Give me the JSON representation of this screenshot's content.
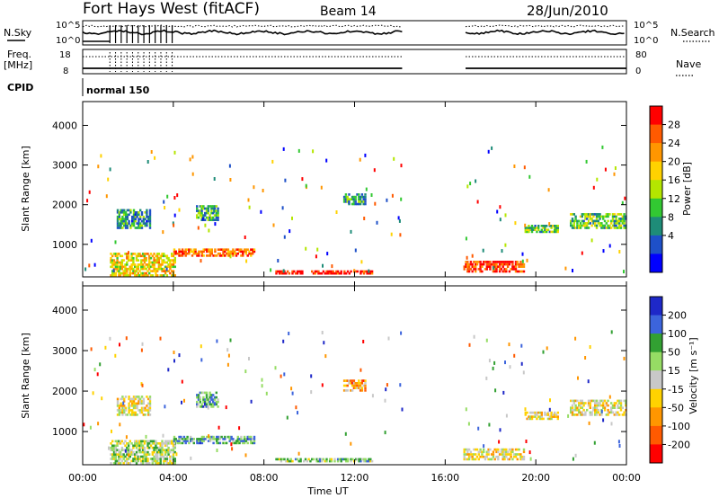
{
  "header": {
    "station": "Fort Hays West (fitACF)",
    "beam": "Beam 14",
    "date": "28/Jun/2010"
  },
  "panels": {
    "nsky": {
      "label": "N.Sky",
      "ticks": [
        "10^5",
        "10^0"
      ],
      "right_ticks": [
        "10^5",
        "10^0"
      ],
      "right_label": "N.Search"
    },
    "freq": {
      "label_line1": "Freq.",
      "label_line2": "[MHz]",
      "ticks": [
        "18",
        "8"
      ],
      "right_ticks": [
        "80",
        "0"
      ],
      "right_label": "Nave"
    },
    "cpid": {
      "label": "CPID",
      "value": "normal 150"
    }
  },
  "chart_data": [
    {
      "type": "heatmap",
      "name": "power",
      "ylabel": "Slant Range [km]",
      "ylim": [
        180,
        4600
      ],
      "y_ticks": [
        1000,
        2000,
        3000,
        4000
      ],
      "x_ticks": [
        "00:00",
        "04:00",
        "08:00",
        "12:00",
        "16:00",
        "20:00",
        "00:00"
      ],
      "colorbar": {
        "label": "Power [dB]",
        "ticks": [
          "28",
          "24",
          "20",
          "16",
          "12",
          "8",
          "4"
        ],
        "colors": [
          "#ff0000",
          "#ff5a00",
          "#ff9600",
          "#ffd200",
          "#b4e600",
          "#32c832",
          "#1e8c78",
          "#1e50c8",
          "#0000ff"
        ]
      },
      "echo_regions": [
        {
          "t": [
            1.2,
            4.1
          ],
          "r": [
            200,
            800
          ],
          "level": 0.6
        },
        {
          "t": [
            4.0,
            7.6
          ],
          "r": [
            700,
            900
          ],
          "level": 0.8
        },
        {
          "t": [
            8.5,
            12.8
          ],
          "r": [
            250,
            350
          ],
          "level": 0.95
        },
        {
          "t": [
            16.8,
            19.5
          ],
          "r": [
            300,
            600
          ],
          "level": 0.9
        },
        {
          "t": [
            1.5,
            3.0
          ],
          "r": [
            1400,
            1900
          ],
          "level": 0.3
        },
        {
          "t": [
            5.0,
            6.0
          ],
          "r": [
            1600,
            2000
          ],
          "level": 0.35
        },
        {
          "t": [
            11.5,
            12.5
          ],
          "r": [
            2000,
            2300
          ],
          "level": 0.3
        },
        {
          "t": [
            21.5,
            24.0
          ],
          "r": [
            1400,
            1800
          ],
          "level": 0.4
        },
        {
          "t": [
            19.5,
            21.0
          ],
          "r": [
            1300,
            1500
          ],
          "level": 0.4
        }
      ]
    },
    {
      "type": "heatmap",
      "name": "velocity",
      "ylabel": "Slant Range [km]",
      "xlabel": "Time UT",
      "ylim": [
        180,
        4600
      ],
      "y_ticks": [
        1000,
        2000,
        3000,
        4000
      ],
      "x_ticks": [
        "00:00",
        "04:00",
        "08:00",
        "12:00",
        "16:00",
        "20:00",
        "00:00"
      ],
      "colorbar": {
        "label": "Velocity [m s⁻¹]",
        "ticks": [
          "200",
          "100",
          "50",
          "15",
          "-15",
          "-50",
          "-100",
          "-200"
        ],
        "colors": [
          "#1e28c8",
          "#3c64dc",
          "#32a032",
          "#96dc64",
          "#c8c8c8",
          "#ffd200",
          "#ff9600",
          "#ff5a00",
          "#ff0000"
        ]
      },
      "echo_regions": [
        {
          "t": [
            1.2,
            4.1
          ],
          "r": [
            200,
            800
          ],
          "level": 0.55
        },
        {
          "t": [
            4.0,
            7.6
          ],
          "r": [
            700,
            900
          ],
          "level": 0.7
        },
        {
          "t": [
            8.5,
            12.8
          ],
          "r": [
            250,
            350
          ],
          "level": 0.6
        },
        {
          "t": [
            16.8,
            19.5
          ],
          "r": [
            300,
            600
          ],
          "level": 0.45
        },
        {
          "t": [
            1.5,
            3.0
          ],
          "r": [
            1400,
            1900
          ],
          "level": 0.45
        },
        {
          "t": [
            5.0,
            6.0
          ],
          "r": [
            1600,
            2000
          ],
          "level": 0.7
        },
        {
          "t": [
            11.5,
            12.5
          ],
          "r": [
            2000,
            2300
          ],
          "level": 0.3
        },
        {
          "t": [
            21.5,
            24.0
          ],
          "r": [
            1400,
            1800
          ],
          "level": 0.45
        },
        {
          "t": [
            19.5,
            21.0
          ],
          "r": [
            1300,
            1500
          ],
          "level": 0.45
        }
      ]
    }
  ]
}
